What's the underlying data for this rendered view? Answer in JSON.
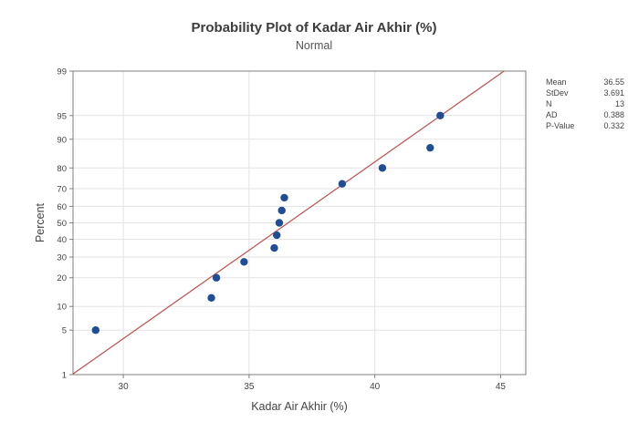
{
  "chart_data": {
    "type": "scatter",
    "title": "Probability Plot of Kadar Air Akhir (%)",
    "subtitle": "Normal",
    "xlabel": "Kadar Air Akhir (%)",
    "ylabel": "Percent",
    "xlim": [
      28,
      46
    ],
    "x_ticks": [
      30,
      35,
      40,
      45
    ],
    "y_scale": "normal-probability",
    "y_ticks": [
      1,
      5,
      10,
      20,
      30,
      40,
      50,
      60,
      70,
      80,
      90,
      95,
      99
    ],
    "grid": true,
    "points": [
      {
        "x": 28.9,
        "y": 5
      },
      {
        "x": 33.5,
        "y": 12.5
      },
      {
        "x": 33.7,
        "y": 20
      },
      {
        "x": 34.8,
        "y": 27.5
      },
      {
        "x": 36.0,
        "y": 35
      },
      {
        "x": 36.1,
        "y": 42.5
      },
      {
        "x": 36.2,
        "y": 50
      },
      {
        "x": 36.3,
        "y": 57.5
      },
      {
        "x": 36.4,
        "y": 65
      },
      {
        "x": 38.7,
        "y": 72.5
      },
      {
        "x": 40.3,
        "y": 80
      },
      {
        "x": 42.2,
        "y": 87.5
      },
      {
        "x": 42.6,
        "y": 95
      }
    ],
    "fit_line": {
      "mean": 36.55,
      "stdev": 3.691
    },
    "colors": {
      "points": "#1f4e96",
      "fit_line": "#c0504d",
      "grid": "#e3e3e3",
      "frame": "#7f7f7f"
    }
  },
  "stats": [
    {
      "label": "Mean",
      "value": "36.55"
    },
    {
      "label": "StDev",
      "value": "3.691"
    },
    {
      "label": "N",
      "value": "13"
    },
    {
      "label": "AD",
      "value": "0.388"
    },
    {
      "label": "P-Value",
      "value": "0.332"
    }
  ]
}
